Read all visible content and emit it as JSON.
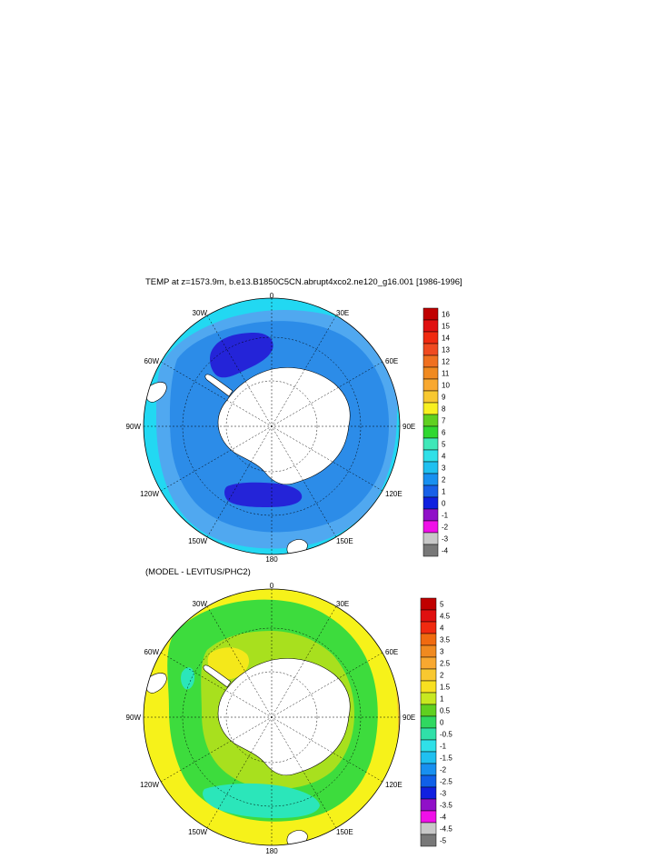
{
  "panel1": {
    "title": "TEMP at z=1573.9m, b.e13.B1850C5CN.abrupt4xco2.ne120_g16.001 [1986-1996]",
    "lon_labels": [
      "0",
      "30E",
      "60E",
      "90E",
      "120E",
      "150E",
      "180",
      "150W",
      "120W",
      "90W",
      "60W",
      "30W"
    ],
    "colorbar": {
      "labels": [
        "16",
        "15",
        "14",
        "13",
        "12",
        "11",
        "10",
        "9",
        "8",
        "7",
        "6",
        "5",
        "4",
        "3",
        "2",
        "1",
        "0",
        "-1",
        "-2",
        "-3",
        "-4"
      ],
      "colors": [
        "#c00000",
        "#e01010",
        "#f02a10",
        "#f04a20",
        "#f07020",
        "#f08a20",
        "#f8a830",
        "#f8c830",
        "#f8f020",
        "#60d020",
        "#30d830",
        "#40e8b8",
        "#30e0e8",
        "#20c0f0",
        "#1890f0",
        "#1860e8",
        "#1020e0",
        "#9010c8",
        "#f010e8",
        "#c8c8c8",
        "#787878"
      ]
    }
  },
  "panel2": {
    "title": "(MODEL - LEVITUS/PHC2)",
    "lon_labels": [
      "0",
      "30E",
      "60E",
      "90E",
      "120E",
      "150E",
      "180",
      "150W",
      "120W",
      "90W",
      "60W",
      "30W"
    ],
    "colorbar": {
      "labels": [
        "5",
        "4.5",
        "4",
        "3.5",
        "3",
        "2.5",
        "2",
        "1.5",
        "1",
        "0.5",
        "0",
        "-0.5",
        "-1",
        "-1.5",
        "-2",
        "-2.5",
        "-3",
        "-3.5",
        "-4",
        "-4.5",
        "-5"
      ],
      "colors": [
        "#c00000",
        "#e01010",
        "#f02a10",
        "#f06a10",
        "#f08a20",
        "#f8a830",
        "#f8c830",
        "#f8e020",
        "#c8e820",
        "#60d020",
        "#30d860",
        "#30e0a8",
        "#30e0e8",
        "#20c0f0",
        "#1890f0",
        "#1060e8",
        "#1020e0",
        "#9010c8",
        "#f010e8",
        "#c8c8c8",
        "#787878"
      ]
    }
  },
  "palette": {
    "land": "#ffffff",
    "t_navy": "#2424d8",
    "t_mid": "#2c8ce8",
    "t_light": "#50a8f0",
    "t_cyan": "#22d8f2",
    "d_yellow": "#f6f21a",
    "d_lightyellow": "#f4e81a",
    "d_green": "#3ddc3d",
    "d_yellowgreen": "#a8e01e",
    "d_aqua": "#2be6ba",
    "d_orange": "#f0c030"
  }
}
